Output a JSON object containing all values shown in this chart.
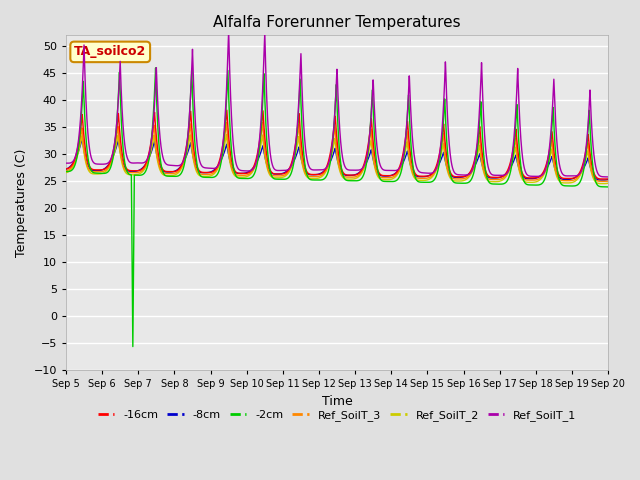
{
  "title": "Alfalfa Forerunner Temperatures",
  "xlabel": "Time",
  "ylabel": "Temperatures (C)",
  "ylim": [
    -10,
    52
  ],
  "xlim": [
    0,
    15
  ],
  "background_color": "#e0e0e0",
  "plot_bg_color": "#e8e8e8",
  "annotation_text": "TA_soilco2",
  "annotation_color": "#cc0000",
  "annotation_bg": "#ffffcc",
  "annotation_border": "#cc8800",
  "series": {
    "neg16cm": {
      "label": "-16cm",
      "color": "#ff0000"
    },
    "neg8cm": {
      "label": "-8cm",
      "color": "#0000cc"
    },
    "neg2cm": {
      "label": "-2cm",
      "color": "#00cc00"
    },
    "ref3": {
      "label": "Ref_SoilT_3",
      "color": "#ff8800"
    },
    "ref2": {
      "label": "Ref_SoilT_2",
      "color": "#cccc00"
    },
    "ref1": {
      "label": "Ref_SoilT_1",
      "color": "#aa00aa"
    }
  },
  "tick_labels": [
    "Sep 5",
    "Sep 6",
    "Sep 7",
    "Sep 8",
    "Sep 9",
    "Sep 10",
    "Sep 11",
    "Sep 12",
    "Sep 13",
    "Sep 14",
    "Sep 15",
    "Sep 16",
    "Sep 17",
    "Sep 18",
    "Sep 19",
    "Sep 20"
  ],
  "yticks": [
    -10,
    -5,
    0,
    5,
    10,
    15,
    20,
    25,
    30,
    35,
    40,
    45,
    50
  ]
}
